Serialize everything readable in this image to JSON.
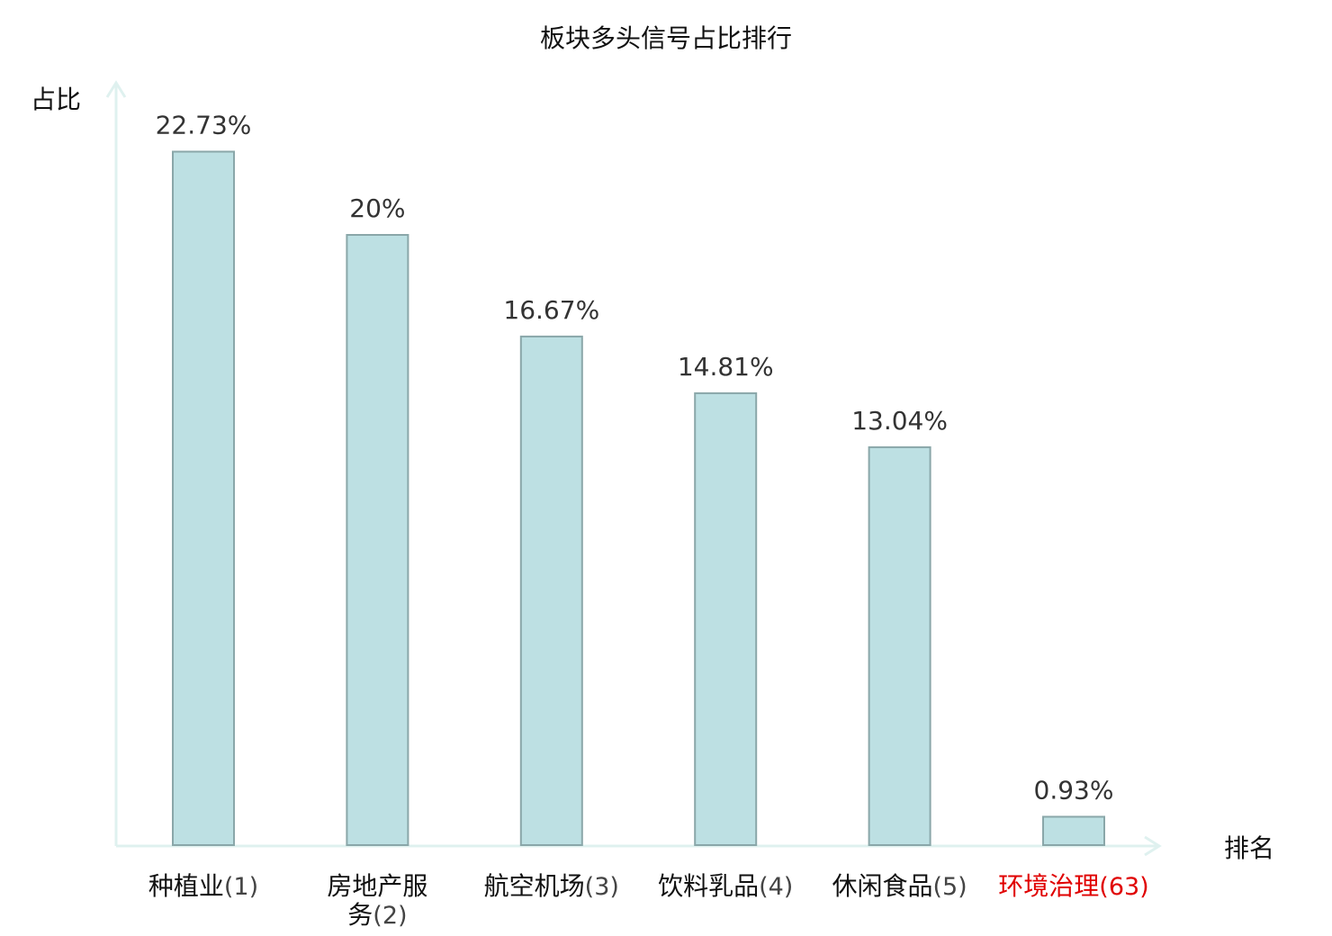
{
  "chart_data": {
    "type": "bar",
    "title": "板块多头信号占比排行",
    "xlabel": "排名",
    "ylabel": "占比",
    "ylim": [
      0,
      25
    ],
    "grid": false,
    "legend": "none",
    "categories": [
      {
        "name": "种植业",
        "rank": "(1)",
        "highlight": false
      },
      {
        "name": "房地产服务",
        "rank": "(2)",
        "highlight": false
      },
      {
        "name": "航空机场",
        "rank": "(3)",
        "highlight": false
      },
      {
        "name": "饮料乳品",
        "rank": "(4)",
        "highlight": false
      },
      {
        "name": "休闲食品",
        "rank": "(5)",
        "highlight": false
      },
      {
        "name": "环境治理",
        "rank": "(63)",
        "highlight": true
      }
    ],
    "values": [
      22.73,
      20,
      16.67,
      14.81,
      13.04,
      0.93
    ],
    "value_labels": [
      "22.73%",
      "20%",
      "16.67%",
      "14.81%",
      "13.04%",
      "0.93%"
    ],
    "colors": {
      "bar_fill": "#bde0e3",
      "bar_stroke": "#8aa7a9",
      "axis": "#dff1ef",
      "label_text": "#111111",
      "rank_text": "#444444",
      "highlight_text": "#e00000"
    }
  }
}
